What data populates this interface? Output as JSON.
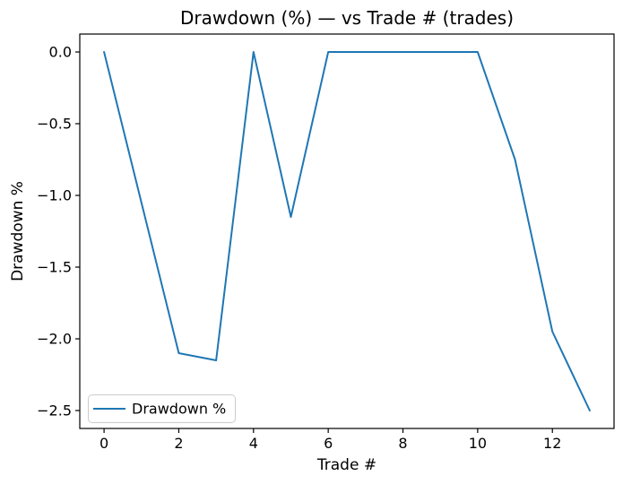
{
  "figure": {
    "background_color": "#ffffff",
    "spine_color": "#000000"
  },
  "chart_data": {
    "type": "line",
    "title": "Drawdown (%) — vs Trade # (trades)",
    "xlabel": "Trade #",
    "ylabel": "Drawdown %",
    "x": [
      0,
      1,
      2,
      3,
      4,
      5,
      6,
      7,
      8,
      9,
      10,
      11,
      12,
      13
    ],
    "series": [
      {
        "name": "Drawdown %",
        "color": "#1f77b4",
        "values": [
          0.0,
          -1.05,
          -2.1,
          -2.15,
          0.0,
          -1.15,
          0.0,
          0.0,
          0.0,
          0.0,
          0.0,
          -0.75,
          -1.95,
          -2.5
        ]
      }
    ],
    "xlim": [
      -0.65,
      13.65
    ],
    "ylim": [
      -2.625,
      0.125
    ],
    "xticks": {
      "values": [
        0,
        2,
        4,
        6,
        8,
        10,
        12
      ],
      "labels": [
        "0",
        "2",
        "4",
        "6",
        "8",
        "10",
        "12"
      ]
    },
    "yticks": {
      "values": [
        0.0,
        -0.5,
        -1.0,
        -1.5,
        -2.0,
        -2.5
      ],
      "labels": [
        "0.0",
        "−0.5",
        "−1.0",
        "−1.5",
        "−2.0",
        "−2.5"
      ]
    },
    "grid": false,
    "legend_position": "lower left"
  },
  "legend": {
    "entries": [
      {
        "label": "Drawdown %",
        "color": "#1f77b4"
      }
    ],
    "border_color": "#cccccc",
    "background_color": "#ffffff"
  }
}
